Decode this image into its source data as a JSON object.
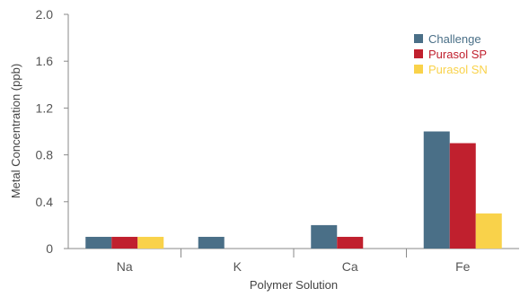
{
  "chart_data": {
    "type": "bar",
    "title": "",
    "xlabel": "Polymer Solution",
    "ylabel": "Metal Concentration (ppb)",
    "categories": [
      "Na",
      "K",
      "Ca",
      "Fe"
    ],
    "yticks": [
      "0",
      "0.4",
      "0.8",
      "1.2",
      "1.6",
      "2.0"
    ],
    "ylim": [
      0,
      2.0
    ],
    "grid": false,
    "legend_position": "top-right",
    "series": [
      {
        "name": "Challenge",
        "color": "#4a6f87",
        "values": [
          0.1,
          0.1,
          0.2,
          1.0
        ]
      },
      {
        "name": "Purasol SP",
        "color": "#c0202e",
        "values": [
          0.1,
          0,
          0.1,
          0.9
        ]
      },
      {
        "name": "Purasol SN",
        "color": "#f9d24a",
        "values": [
          0.1,
          0,
          0,
          0.3
        ]
      }
    ]
  }
}
